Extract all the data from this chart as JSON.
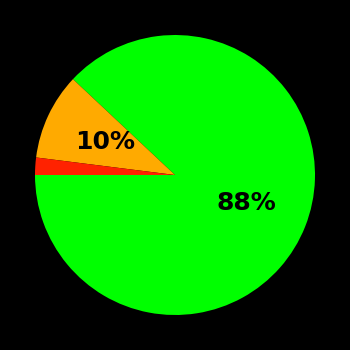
{
  "slices": [
    88,
    10,
    2
  ],
  "colors": [
    "#00ff00",
    "#ffaa00",
    "#ff2200"
  ],
  "labels": [
    "88%",
    "10%",
    ""
  ],
  "background_color": "#000000",
  "text_color": "#000000",
  "startangle": 180,
  "figsize": [
    3.5,
    3.5
  ],
  "dpi": 100,
  "label_fontsize": 18,
  "label_fontweight": "bold",
  "label_radii": [
    0.55,
    0.55,
    0.0
  ]
}
